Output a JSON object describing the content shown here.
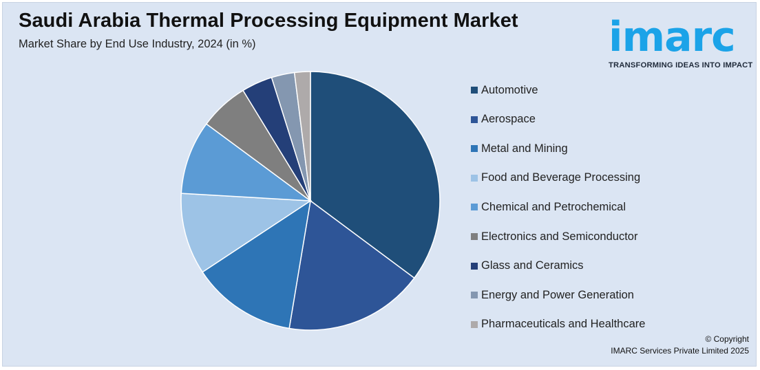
{
  "title": "Saudi Arabia Thermal Processing Equipment Market",
  "subtitle": "Market Share by End Use Industry, 2024 (in %)",
  "logo": {
    "word": "imarc",
    "tagline": "TRANSFORMING IDEAS INTO IMPACT",
    "color": "#1ba3e8"
  },
  "copyright": {
    "line1": "© Copyright",
    "line2": "IMARC Services Private Limited 2025"
  },
  "chart_data": {
    "type": "pie",
    "title": "Saudi Arabia Thermal Processing Equipment Market",
    "subtitle": "Market Share by End Use Industry, 2024 (in %)",
    "legend_position": "right",
    "start_angle": "12 o'clock, clockwise",
    "categories": [
      "Automotive",
      "Aerospace",
      "Metal and Mining",
      "Food and Beverage Processing",
      "Chemical and Petrochemical",
      "Electronics and Semiconductor",
      "Glass and Ceramics",
      "Energy and Power Generation",
      "Pharmaceuticals and Healthcare"
    ],
    "values": [
      35.5,
      17.6,
      13.2,
      10.3,
      9.3,
      6.2,
      3.9,
      2.9,
      2.0
    ],
    "colors": [
      "#1f4e79",
      "#2e5597",
      "#2e75b6",
      "#9dc3e6",
      "#5b9bd5",
      "#7f7f7f",
      "#243f78",
      "#8497b0",
      "#aeaaaa"
    ]
  }
}
